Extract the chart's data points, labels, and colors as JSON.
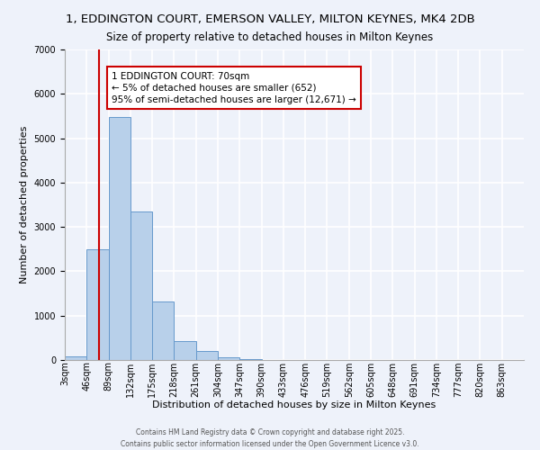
{
  "title_line1": "1, EDDINGTON COURT, EMERSON VALLEY, MILTON KEYNES, MK4 2DB",
  "title_line2": "Size of property relative to detached houses in Milton Keynes",
  "xlabel": "Distribution of detached houses by size in Milton Keynes",
  "ylabel": "Number of detached properties",
  "categories": [
    "3sqm",
    "46sqm",
    "89sqm",
    "132sqm",
    "175sqm",
    "218sqm",
    "261sqm",
    "304sqm",
    "347sqm",
    "390sqm",
    "433sqm",
    "476sqm",
    "519sqm",
    "562sqm",
    "605sqm",
    "648sqm",
    "691sqm",
    "734sqm",
    "777sqm",
    "820sqm",
    "863sqm"
  ],
  "bar_values": [
    80,
    2500,
    5480,
    3350,
    1320,
    420,
    200,
    70,
    30,
    0,
    0,
    0,
    0,
    0,
    0,
    0,
    0,
    0,
    0,
    0,
    0
  ],
  "bar_left_edges": [
    3,
    46,
    89,
    132,
    175,
    218,
    261,
    304,
    347,
    390,
    433,
    476,
    519,
    562,
    605,
    648,
    691,
    734,
    777,
    820,
    863
  ],
  "bin_width": 43,
  "bar_color": "#b8d0ea",
  "bar_edge_color": "#6699cc",
  "background_color": "#eef2fa",
  "grid_color": "#ffffff",
  "ylim": [
    0,
    7000
  ],
  "yticks": [
    0,
    1000,
    2000,
    3000,
    4000,
    5000,
    6000,
    7000
  ],
  "vline_x": 70,
  "vline_color": "#cc0000",
  "annotation_title": "1 EDDINGTON COURT: 70sqm",
  "annotation_line2": "← 5% of detached houses are smaller (652)",
  "annotation_line3": "95% of semi-detached houses are larger (12,671) →",
  "footer_line1": "Contains HM Land Registry data © Crown copyright and database right 2025.",
  "footer_line2": "Contains public sector information licensed under the Open Government Licence v3.0.",
  "title_fontsize": 9.5,
  "subtitle_fontsize": 8.5,
  "axis_label_fontsize": 8,
  "tick_fontsize": 7,
  "annotation_fontsize": 7.5,
  "footer_fontsize": 5.5
}
